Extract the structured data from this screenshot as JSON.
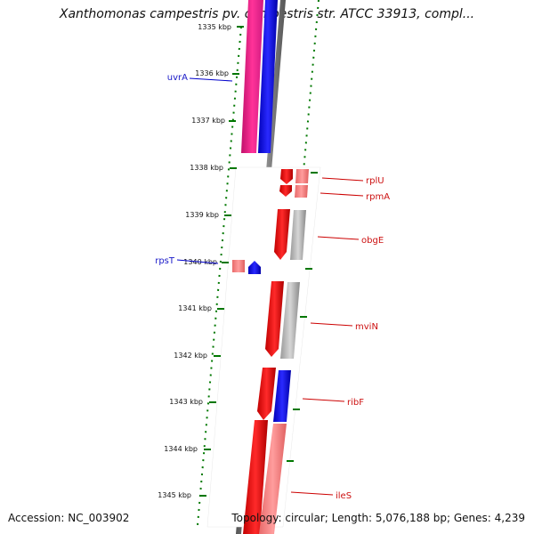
{
  "header": {
    "title": "Xanthomonas campestris pv. campestris str. ATCC 33913, compl..."
  },
  "footer": {
    "accession": "Accession: NC_003902",
    "topology": "Topology: circular; Length: 5,076,188 bp; Genes: 4,239"
  },
  "scale": {
    "unit": "kbp",
    "ticks": [
      {
        "kbp": 1335,
        "label": "1335 kbp"
      },
      {
        "kbp": 1336,
        "label": "1336 kbp"
      },
      {
        "kbp": 1337,
        "label": "1337 kbp"
      },
      {
        "kbp": 1338,
        "label": "1338 kbp"
      },
      {
        "kbp": 1339,
        "label": "1339 kbp"
      },
      {
        "kbp": 1340,
        "label": "1340 kbp"
      },
      {
        "kbp": 1341,
        "label": "1341 kbp"
      },
      {
        "kbp": 1342,
        "label": "1342 kbp"
      },
      {
        "kbp": 1343,
        "label": "1343 kbp"
      },
      {
        "kbp": 1344,
        "label": "1344 kbp"
      },
      {
        "kbp": 1345,
        "label": "1345 kbp"
      }
    ]
  },
  "genes": [
    {
      "name": "uvrA",
      "strand": "reverse",
      "color": "#1818c8"
    },
    {
      "name": "rplU",
      "strand": "forward",
      "color": "#cc1111"
    },
    {
      "name": "rpmA",
      "strand": "forward",
      "color": "#cc1111"
    },
    {
      "name": "obgE",
      "strand": "forward",
      "color": "#cc1111"
    },
    {
      "name": "rpsT",
      "strand": "reverse",
      "color": "#1818c8"
    },
    {
      "name": "mviN",
      "strand": "forward",
      "color": "#cc1111"
    },
    {
      "name": "ribF",
      "strand": "forward",
      "color": "#cc1111"
    },
    {
      "name": "ileS",
      "strand": "forward",
      "color": "#cc1111"
    }
  ],
  "colors": {
    "forward": "#ff0000",
    "reverse": "#0000ff",
    "rna": "#ff3399",
    "ruler": "#007700",
    "backbone": "#777777",
    "gc_pos": "#ff8080",
    "gc_neutral": "#aaaaaa"
  }
}
